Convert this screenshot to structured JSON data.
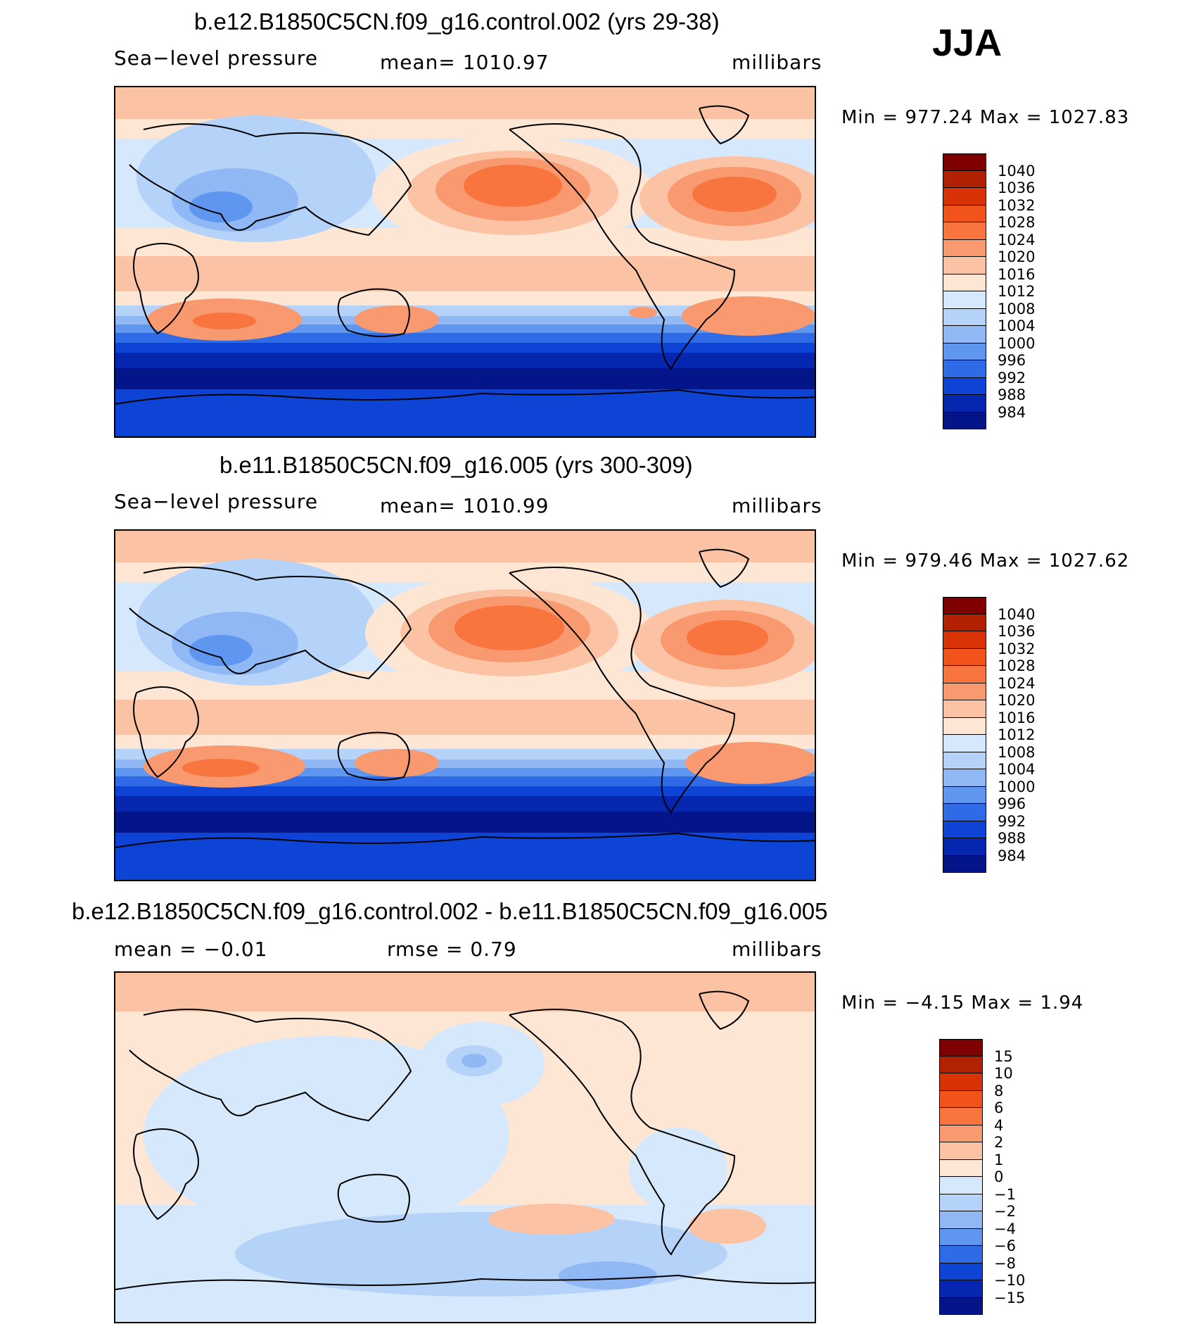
{
  "season": "JJA",
  "panels": [
    {
      "title": "b.e12.B1850C5CN.f09_g16.control.002 (yrs 29-38)",
      "left_label": "Sea−level pressure",
      "center_label": "mean=  1010.97",
      "units": "millibars",
      "minmax": "Min  =  977.24  Max  =  1027.83",
      "colorbar_levels": [
        "1040",
        "1036",
        "1032",
        "1028",
        "1024",
        "1020",
        "1016",
        "1012",
        "1008",
        "1004",
        "1000",
        "996",
        "992",
        "988",
        "984"
      ],
      "colorbar_colors": [
        "#7f0000",
        "#b22202",
        "#d93206",
        "#f2531a",
        "#f87540",
        "#f99970",
        "#fbc3a4",
        "#fde6d4",
        "#d6e8fb",
        "#b5d3f8",
        "#8fb8f5",
        "#5f96f0",
        "#2f6be6",
        "#0d44d6",
        "#0626b0",
        "#04158a"
      ]
    },
    {
      "title": "b.e11.B1850C5CN.f09_g16.005 (yrs 300-309)",
      "left_label": "Sea−level pressure",
      "center_label": "mean=  1010.99",
      "units": "millibars",
      "minmax": "Min  =  979.46  Max  =  1027.62",
      "colorbar_levels": [
        "1040",
        "1036",
        "1032",
        "1028",
        "1024",
        "1020",
        "1016",
        "1012",
        "1008",
        "1004",
        "1000",
        "996",
        "992",
        "988",
        "984"
      ],
      "colorbar_colors": [
        "#7f0000",
        "#b22202",
        "#d93206",
        "#f2531a",
        "#f87540",
        "#f99970",
        "#fbc3a4",
        "#fde6d4",
        "#d6e8fb",
        "#b5d3f8",
        "#8fb8f5",
        "#5f96f0",
        "#2f6be6",
        "#0d44d6",
        "#0626b0",
        "#04158a"
      ]
    },
    {
      "title": "b.e12.B1850C5CN.f09_g16.control.002 - b.e11.B1850C5CN.f09_g16.005",
      "left_label": "mean =   −0.01",
      "center_label": "rmse =    0.79",
      "units": "millibars",
      "minmax": "Min  =   −4.15  Max  =    1.94",
      "colorbar_levels": [
        "15",
        "10",
        "8",
        "6",
        "4",
        "2",
        "1",
        "0",
        "−1",
        "−2",
        "−4",
        "−6",
        "−8",
        "−10",
        "−15"
      ],
      "colorbar_colors": [
        "#7f0000",
        "#b22202",
        "#d93206",
        "#f2531a",
        "#f87540",
        "#f99970",
        "#fbc3a4",
        "#fde6d4",
        "#d6e8fb",
        "#b5d3f8",
        "#8fb8f5",
        "#5f96f0",
        "#2f6be6",
        "#0d44d6",
        "#0626b0",
        "#04158a"
      ]
    }
  ],
  "chart_data": [
    {
      "type": "heatmap",
      "title": "b.e12.B1850C5CN.f09_g16.control.002 (yrs 29-38)",
      "variable": "Sea-level pressure",
      "units": "millibars",
      "mean": 1010.97,
      "min": 977.24,
      "max": 1027.83,
      "contour_levels": [
        984,
        988,
        992,
        996,
        1000,
        1004,
        1008,
        1012,
        1016,
        1020,
        1024,
        1028,
        1032,
        1036,
        1040
      ]
    },
    {
      "type": "heatmap",
      "title": "b.e11.B1850C5CN.f09_g16.005 (yrs 300-309)",
      "variable": "Sea-level pressure",
      "units": "millibars",
      "mean": 1010.99,
      "min": 979.46,
      "max": 1027.62,
      "contour_levels": [
        984,
        988,
        992,
        996,
        1000,
        1004,
        1008,
        1012,
        1016,
        1020,
        1024,
        1028,
        1032,
        1036,
        1040
      ]
    },
    {
      "type": "heatmap",
      "title": "b.e12.B1850C5CN.f09_g16.control.002 - b.e11.B1850C5CN.f09_g16.005",
      "variable": "Sea-level pressure difference",
      "units": "millibars",
      "mean": -0.01,
      "rmse": 0.79,
      "min": -4.15,
      "max": 1.94,
      "contour_levels": [
        -15,
        -10,
        -8,
        -6,
        -4,
        -2,
        -1,
        0,
        1,
        2,
        4,
        6,
        8,
        10,
        15
      ]
    }
  ]
}
